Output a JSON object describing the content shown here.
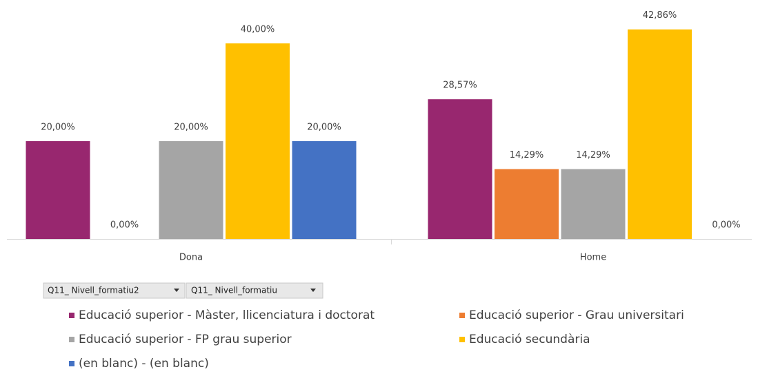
{
  "chart_data": {
    "type": "bar",
    "categories": [
      "Dona",
      "Home"
    ],
    "series": [
      {
        "name": "Educació superior - Màster, llicenciatura i doctorat",
        "color": "#98276f",
        "values": [
          20,
          28.57
        ],
        "value_labels": [
          "20,00%",
          "28,57%"
        ]
      },
      {
        "name": "Educació superior - Grau universitari",
        "color": "#ed7d31",
        "values": [
          0,
          14.29
        ],
        "value_labels": [
          "0,00%",
          "14,29%"
        ]
      },
      {
        "name": "Educació superior - FP grau superior",
        "color": "#a5a5a5",
        "values": [
          20,
          14.29
        ],
        "value_labels": [
          "20,00%",
          "14,29%"
        ]
      },
      {
        "name": "Educació secundària",
        "color": "#ffc000",
        "values": [
          40,
          42.86
        ],
        "value_labels": [
          "40,00%",
          "42,86%"
        ]
      },
      {
        "name": "(en blanc) - (en blanc)",
        "color": "#4472c4",
        "values": [
          20,
          0
        ],
        "value_labels": [
          "20,00%",
          "0,00%"
        ]
      }
    ],
    "ylim": [
      0,
      45
    ],
    "field_buttons": [
      "Q11_ Nivell_formatiu2",
      "Q11_ Nivell_formatiu"
    ]
  }
}
